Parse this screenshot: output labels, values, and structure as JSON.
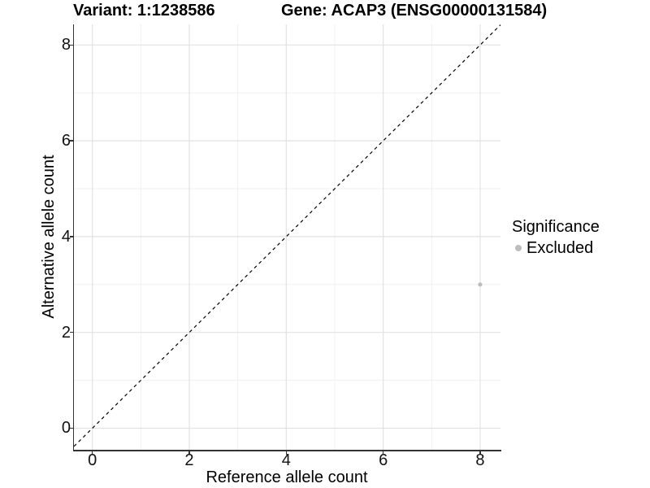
{
  "chart_data": {
    "type": "scatter",
    "title_left": "Variant: 1:1238586",
    "title_right": "Gene: ACAP3 (ENSG00000131584)",
    "xlabel": "Reference allele count",
    "ylabel": "Alternative allele count",
    "xlim": [
      -0.38,
      8.42
    ],
    "ylim": [
      -0.45,
      8.43
    ],
    "x_ticks": [
      0,
      2,
      4,
      6,
      8
    ],
    "y_ticks": [
      0,
      2,
      4,
      6,
      8
    ],
    "x_minor_ticks": [
      1,
      3,
      5,
      7
    ],
    "y_minor_ticks": [
      1,
      3,
      5,
      7
    ],
    "grid": "major+minor",
    "legend_position": "right",
    "legend": {
      "title": "Significance",
      "entries": [
        {
          "label": "Excluded",
          "color": "#bdbdbd",
          "marker": "circle"
        }
      ]
    },
    "series": [
      {
        "name": "Excluded",
        "color": "#bdbdbd",
        "points": [
          {
            "x": 8,
            "y": 3
          }
        ]
      }
    ],
    "reference_line": {
      "kind": "identity y=x",
      "style": "dashed",
      "color": "#000000"
    }
  },
  "colors": {
    "background": "#ffffff",
    "grid_major": "#e2e2e2",
    "grid_minor": "#f0f0f0",
    "axis_line": "#333333",
    "tick_text": "#111111",
    "title_text": "#000000",
    "point": "#bdbdbd"
  }
}
